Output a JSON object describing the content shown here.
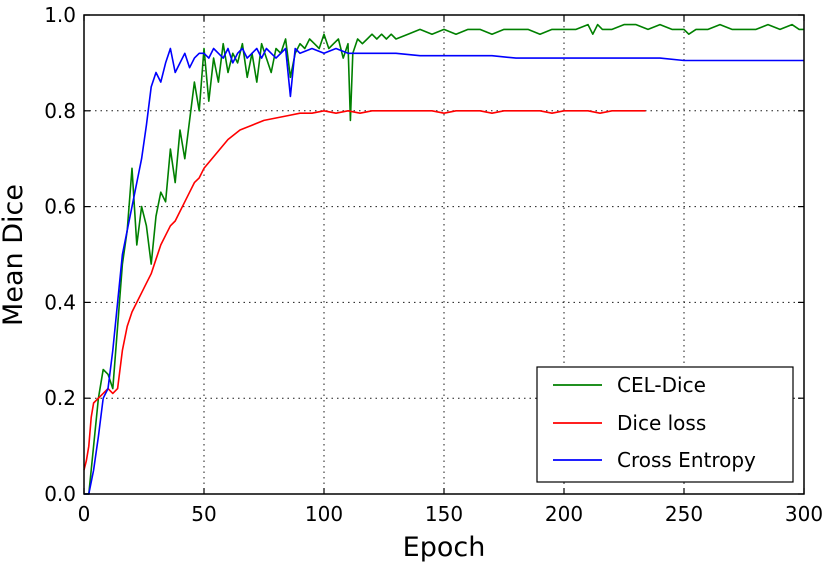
{
  "chart_data": {
    "type": "line",
    "title": "",
    "xlabel": "Epoch",
    "ylabel": "Mean Dice",
    "xlim": [
      0,
      300
    ],
    "ylim": [
      0.0,
      1.0
    ],
    "x_ticks": [
      0,
      50,
      100,
      150,
      200,
      250,
      300
    ],
    "x_tick_labels": [
      "0",
      "50",
      "100",
      "150",
      "200",
      "250",
      "300"
    ],
    "y_ticks": [
      0.0,
      0.2,
      0.4,
      0.6,
      0.8,
      1.0
    ],
    "y_tick_labels": [
      "0.0",
      "0.2",
      "0.4",
      "0.6",
      "0.8",
      "1.0"
    ],
    "grid": true,
    "legend_position": "lower-right",
    "series": [
      {
        "name": "CEL-Dice",
        "color": "#008000",
        "x": [
          0,
          2,
          4,
          6,
          8,
          10,
          12,
          14,
          16,
          18,
          20,
          22,
          24,
          26,
          28,
          30,
          32,
          34,
          36,
          38,
          40,
          42,
          44,
          46,
          48,
          50,
          52,
          54,
          56,
          58,
          60,
          62,
          64,
          66,
          68,
          70,
          72,
          74,
          76,
          78,
          80,
          82,
          84,
          86,
          88,
          90,
          92,
          94,
          96,
          98,
          100,
          102,
          104,
          106,
          108,
          110,
          111,
          112,
          114,
          116,
          118,
          120,
          122,
          124,
          126,
          128,
          130,
          135,
          140,
          145,
          150,
          155,
          160,
          165,
          170,
          175,
          180,
          185,
          190,
          195,
          200,
          205,
          210,
          212,
          214,
          216,
          220,
          225,
          230,
          235,
          240,
          245,
          250,
          252,
          255,
          260,
          265,
          270,
          275,
          280,
          285,
          290,
          295,
          298,
          300
        ],
        "y": [
          0.0,
          0.0,
          0.1,
          0.2,
          0.26,
          0.25,
          0.22,
          0.35,
          0.48,
          0.55,
          0.68,
          0.52,
          0.6,
          0.56,
          0.48,
          0.58,
          0.63,
          0.61,
          0.72,
          0.65,
          0.76,
          0.7,
          0.78,
          0.86,
          0.8,
          0.93,
          0.82,
          0.91,
          0.86,
          0.94,
          0.88,
          0.92,
          0.9,
          0.94,
          0.87,
          0.92,
          0.86,
          0.94,
          0.91,
          0.88,
          0.93,
          0.92,
          0.95,
          0.87,
          0.92,
          0.94,
          0.93,
          0.95,
          0.94,
          0.93,
          0.96,
          0.93,
          0.94,
          0.95,
          0.91,
          0.94,
          0.78,
          0.92,
          0.95,
          0.94,
          0.95,
          0.96,
          0.95,
          0.96,
          0.95,
          0.96,
          0.95,
          0.96,
          0.97,
          0.96,
          0.97,
          0.96,
          0.97,
          0.97,
          0.96,
          0.97,
          0.97,
          0.97,
          0.96,
          0.97,
          0.97,
          0.97,
          0.98,
          0.96,
          0.98,
          0.97,
          0.97,
          0.98,
          0.98,
          0.97,
          0.98,
          0.97,
          0.97,
          0.96,
          0.97,
          0.97,
          0.98,
          0.97,
          0.97,
          0.97,
          0.98,
          0.97,
          0.98,
          0.97,
          0.97
        ]
      },
      {
        "name": "Dice loss",
        "color": "#ff0000",
        "x": [
          0,
          1,
          2,
          3,
          4,
          6,
          8,
          10,
          12,
          14,
          16,
          18,
          20,
          22,
          24,
          26,
          28,
          30,
          32,
          34,
          36,
          38,
          40,
          42,
          44,
          46,
          48,
          50,
          55,
          60,
          65,
          70,
          75,
          80,
          85,
          90,
          95,
          100,
          105,
          110,
          115,
          120,
          125,
          130,
          135,
          140,
          145,
          150,
          155,
          160,
          165,
          170,
          175,
          180,
          185,
          190,
          195,
          200,
          205,
          210,
          215,
          220,
          225,
          234
        ],
        "y": [
          0.05,
          0.07,
          0.1,
          0.16,
          0.19,
          0.2,
          0.21,
          0.22,
          0.21,
          0.22,
          0.3,
          0.35,
          0.38,
          0.4,
          0.42,
          0.44,
          0.46,
          0.49,
          0.52,
          0.54,
          0.56,
          0.57,
          0.59,
          0.61,
          0.63,
          0.65,
          0.66,
          0.68,
          0.71,
          0.74,
          0.76,
          0.77,
          0.78,
          0.785,
          0.79,
          0.795,
          0.795,
          0.8,
          0.795,
          0.8,
          0.795,
          0.8,
          0.8,
          0.8,
          0.8,
          0.8,
          0.8,
          0.795,
          0.8,
          0.8,
          0.8,
          0.795,
          0.8,
          0.8,
          0.8,
          0.8,
          0.795,
          0.8,
          0.8,
          0.8,
          0.795,
          0.8,
          0.8,
          0.8
        ]
      },
      {
        "name": "Cross Entropy",
        "color": "#0000ff",
        "x": [
          0,
          2,
          4,
          6,
          8,
          10,
          12,
          14,
          16,
          18,
          20,
          22,
          24,
          26,
          28,
          30,
          32,
          34,
          36,
          38,
          40,
          42,
          44,
          46,
          48,
          50,
          52,
          54,
          56,
          58,
          60,
          62,
          64,
          66,
          68,
          70,
          72,
          74,
          76,
          78,
          80,
          82,
          84,
          86,
          88,
          90,
          95,
          100,
          105,
          110,
          115,
          120,
          125,
          130,
          140,
          150,
          160,
          170,
          180,
          190,
          200,
          210,
          220,
          230,
          240,
          250,
          260,
          270,
          280,
          290,
          300
        ],
        "y": [
          0.0,
          0.0,
          0.05,
          0.12,
          0.2,
          0.22,
          0.3,
          0.4,
          0.5,
          0.55,
          0.6,
          0.65,
          0.7,
          0.77,
          0.85,
          0.88,
          0.86,
          0.9,
          0.93,
          0.88,
          0.9,
          0.92,
          0.89,
          0.91,
          0.92,
          0.92,
          0.91,
          0.93,
          0.92,
          0.91,
          0.93,
          0.9,
          0.92,
          0.93,
          0.91,
          0.92,
          0.93,
          0.91,
          0.93,
          0.92,
          0.91,
          0.92,
          0.93,
          0.83,
          0.93,
          0.92,
          0.93,
          0.92,
          0.93,
          0.92,
          0.92,
          0.92,
          0.92,
          0.92,
          0.915,
          0.915,
          0.915,
          0.915,
          0.91,
          0.91,
          0.91,
          0.91,
          0.91,
          0.91,
          0.91,
          0.905,
          0.905,
          0.905,
          0.905,
          0.905,
          0.905
        ]
      }
    ]
  }
}
